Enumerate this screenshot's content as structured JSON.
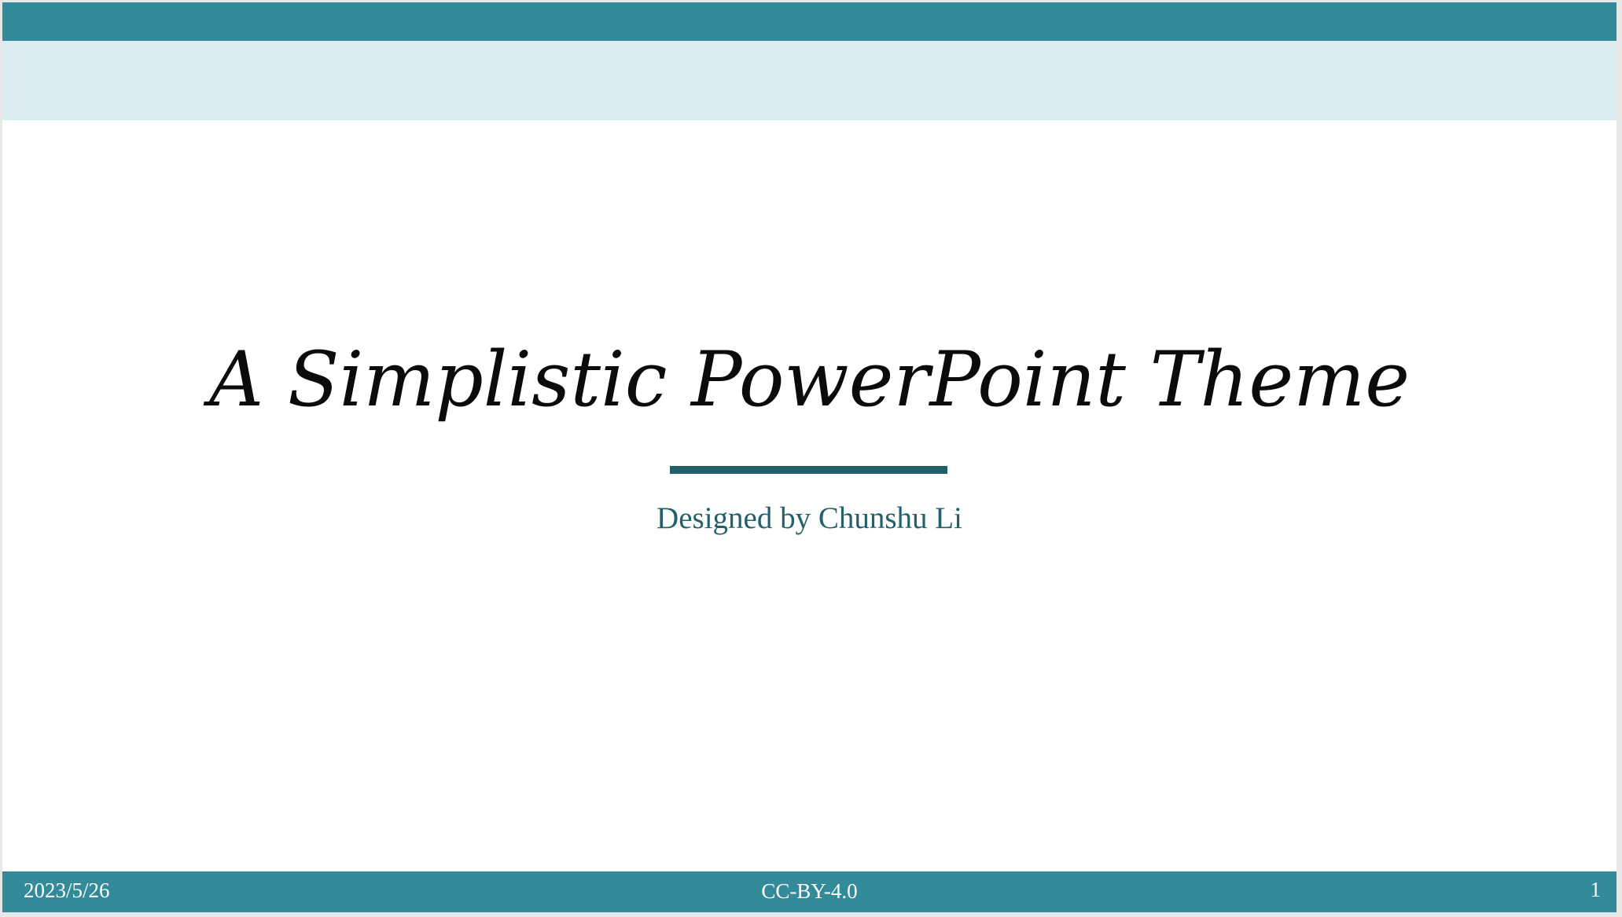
{
  "slide": {
    "title": "A Simplistic PowerPoint Theme",
    "subtitle": "Designed by Chunshu Li"
  },
  "footer": {
    "date": "2023/5/26",
    "license": "CC-BY-4.0",
    "page_number": "1"
  },
  "colors": {
    "accent": "#338b9a",
    "header_band": "#dbeff2",
    "divider": "#23606b",
    "subtitle_text": "#23606b",
    "title_text": "#0b0b0b"
  }
}
